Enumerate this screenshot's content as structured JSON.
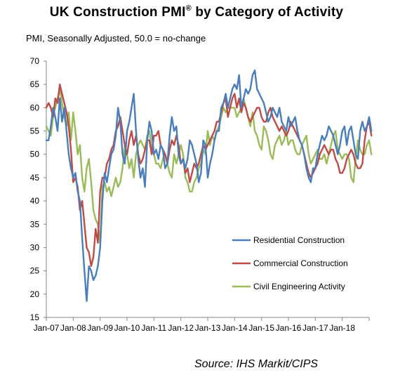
{
  "header": {
    "title": "UK Construction PMI",
    "title_mark": "®",
    "title_rest": " by Category of Activity",
    "subtitle": "PMI, Seasonally Adjusted, 50.0 = no-change"
  },
  "footer": {
    "source": "Source: IHS Markit/CIPS"
  },
  "chart_data": {
    "type": "line",
    "title": "UK Construction PMI® by Category of Activity",
    "ylabel": "PMI, Seasonally Adjusted, 50.0 = no-change",
    "xlabel": "",
    "ylim": [
      15,
      70
    ],
    "yticks": [
      15,
      20,
      25,
      30,
      35,
      40,
      45,
      50,
      55,
      60,
      65,
      70
    ],
    "xlim": [
      "2007-01",
      "2018-12"
    ],
    "xtick_labels": [
      "Jan-07",
      "Jan-08",
      "Jan-09",
      "Jan-10",
      "Jan-11",
      "Jan-12",
      "Jan-13",
      "Jan-14",
      "Jan-15",
      "Jan-16",
      "Jan-17",
      "Jan-18"
    ],
    "grid": false,
    "legend": "center-right",
    "series": [
      {
        "name": "Residential Construction",
        "color": "#4a7ebb",
        "values": [
          53,
          53,
          56,
          60,
          58,
          55,
          62,
          57,
          60,
          55,
          50,
          47,
          45,
          46,
          42,
          40,
          32,
          25,
          18.5,
          26,
          25,
          23,
          24,
          26,
          30,
          40,
          46,
          44,
          47,
          50,
          51,
          54,
          60,
          57,
          50,
          48,
          55,
          57,
          60,
          63,
          55,
          49,
          45,
          47,
          43,
          53,
          57,
          55,
          50,
          51,
          49,
          52,
          51,
          47,
          48,
          54,
          58,
          55,
          56,
          50,
          48,
          49,
          47,
          49,
          53,
          52,
          50,
          48,
          44,
          46,
          53,
          52,
          45,
          48,
          50,
          53,
          55,
          55,
          60,
          61,
          63,
          60,
          62,
          64,
          65,
          64,
          67,
          60,
          62,
          64,
          63,
          64,
          67,
          68,
          64,
          63,
          62,
          61,
          59,
          57,
          58,
          60,
          59,
          58,
          60,
          57,
          56,
          55,
          58,
          56,
          57,
          58,
          55,
          53,
          52,
          50,
          47,
          45,
          44,
          47,
          47,
          50,
          52,
          54,
          53,
          54,
          56,
          55,
          54,
          52,
          50,
          52,
          55,
          56,
          52,
          55,
          56,
          53,
          50,
          49,
          55,
          57,
          55,
          56,
          58,
          55
        ]
      },
      {
        "name": "Commercial Construction",
        "color": "#be4b48",
        "values": [
          60,
          61,
          60,
          58,
          62,
          61,
          65,
          63,
          61,
          59,
          56,
          51,
          44,
          45,
          43,
          38,
          40,
          35,
          30,
          29,
          26,
          28,
          34,
          31,
          42,
          45,
          45,
          48,
          49,
          51,
          52,
          55,
          56,
          58,
          55,
          52,
          50,
          53,
          55,
          52,
          54,
          50,
          48,
          49,
          51,
          53,
          53,
          50,
          54,
          54,
          55,
          52,
          51,
          50,
          48,
          51,
          53,
          52,
          54,
          52,
          48,
          49,
          46,
          47,
          44,
          46,
          48,
          47,
          48,
          50,
          52,
          51,
          52,
          53,
          54,
          55,
          57,
          57,
          59,
          61,
          62,
          58,
          60,
          62,
          63,
          60,
          62,
          59,
          61,
          60,
          58,
          57,
          58,
          59,
          60,
          60,
          58,
          57,
          57,
          59,
          60,
          58,
          57,
          56,
          55,
          56,
          55,
          54,
          55,
          57,
          56,
          55,
          54,
          53,
          52,
          50,
          48,
          46,
          45,
          46,
          47,
          48,
          50,
          51,
          52,
          51,
          50,
          51,
          51,
          49,
          48,
          46,
          46,
          47,
          49,
          50,
          51,
          50,
          48,
          47,
          47,
          48,
          53,
          56,
          57,
          54
        ]
      },
      {
        "name": "Civil Engineering Activity",
        "color": "#9bbb59",
        "values": [
          56,
          55,
          54,
          58,
          60,
          62,
          64,
          61,
          58,
          56,
          59,
          53,
          59,
          55,
          50,
          52,
          45,
          42,
          47,
          49,
          44,
          38,
          36,
          35,
          31,
          43,
          44,
          42,
          43,
          41,
          43,
          45,
          43,
          44,
          47,
          52,
          50,
          47,
          49,
          45,
          50,
          52,
          53,
          52,
          51,
          54,
          55,
          51,
          50,
          48,
          48,
          47,
          49,
          50,
          48,
          46,
          45,
          50,
          48,
          50,
          52,
          50,
          45,
          44,
          42,
          42,
          44,
          45,
          47,
          48,
          51,
          50,
          55,
          52,
          54,
          53,
          55,
          56,
          58,
          60,
          59,
          60,
          60,
          60,
          60,
          58,
          59,
          60,
          62,
          60,
          58,
          56,
          59,
          55,
          54,
          52,
          51,
          56,
          55,
          53,
          50,
          49,
          52,
          53,
          54,
          52,
          53,
          55,
          52,
          53,
          53,
          51,
          50,
          50,
          52,
          53,
          54,
          50,
          48,
          49,
          50,
          51,
          49,
          49,
          50,
          48,
          50,
          52,
          54,
          55,
          51,
          50,
          49,
          50,
          50,
          49,
          45,
          44,
          49,
          53,
          51,
          50,
          50,
          52,
          53,
          50
        ]
      }
    ]
  }
}
